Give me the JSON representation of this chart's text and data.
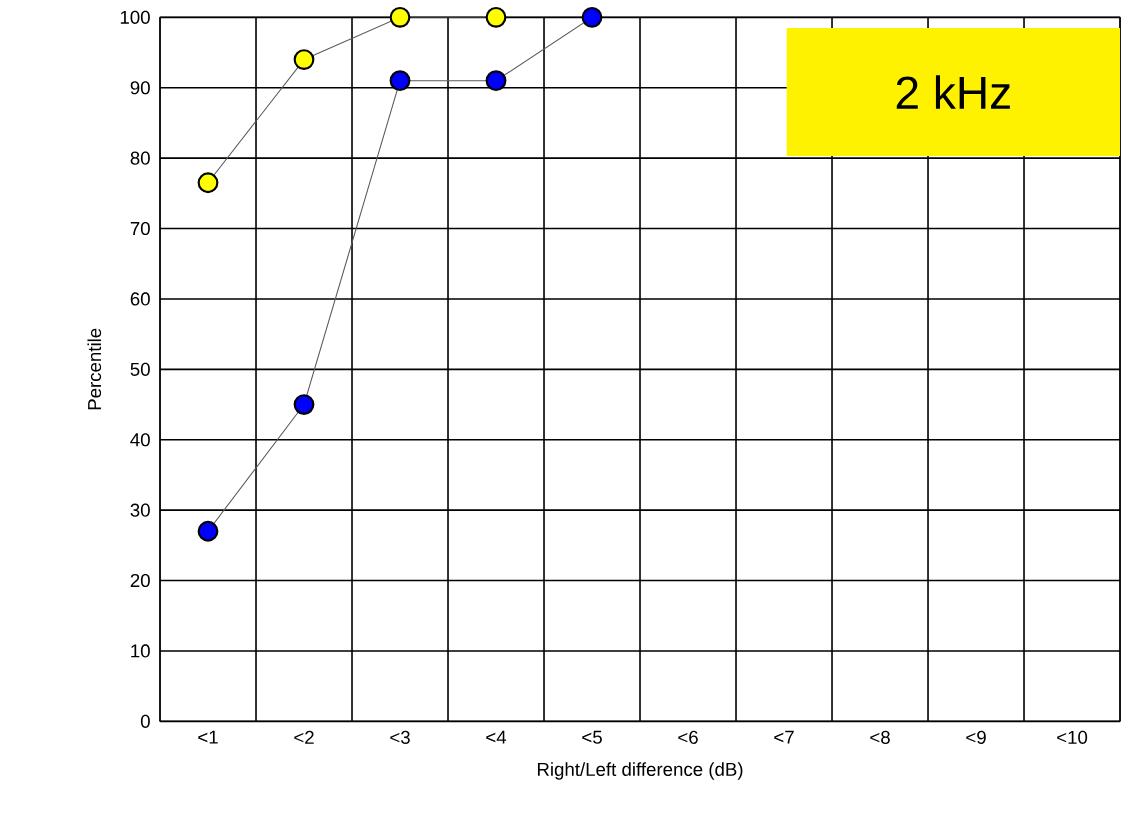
{
  "chart_data": {
    "type": "line",
    "xlabel": "Right/Left difference (dB)",
    "ylabel": "Percentile",
    "categories": [
      "<1",
      "<2",
      "<3",
      "<4",
      "<5",
      "<6",
      "<7",
      "<8",
      "<9",
      "<10"
    ],
    "series": [
      {
        "color": "#ffff00",
        "values": [
          76.5,
          94,
          100,
          100,
          null,
          null,
          null,
          null,
          null,
          null
        ]
      },
      {
        "color": "#0000ff",
        "values": [
          27,
          45,
          91,
          91,
          100,
          null,
          null,
          null,
          null,
          null
        ]
      }
    ],
    "ylim": [
      0,
      100
    ],
    "yticks": [
      0,
      10,
      20,
      30,
      40,
      50,
      60,
      70,
      80,
      90,
      100
    ],
    "grid": true,
    "marker": "circle",
    "annotations": [
      "2 kHz"
    ]
  }
}
